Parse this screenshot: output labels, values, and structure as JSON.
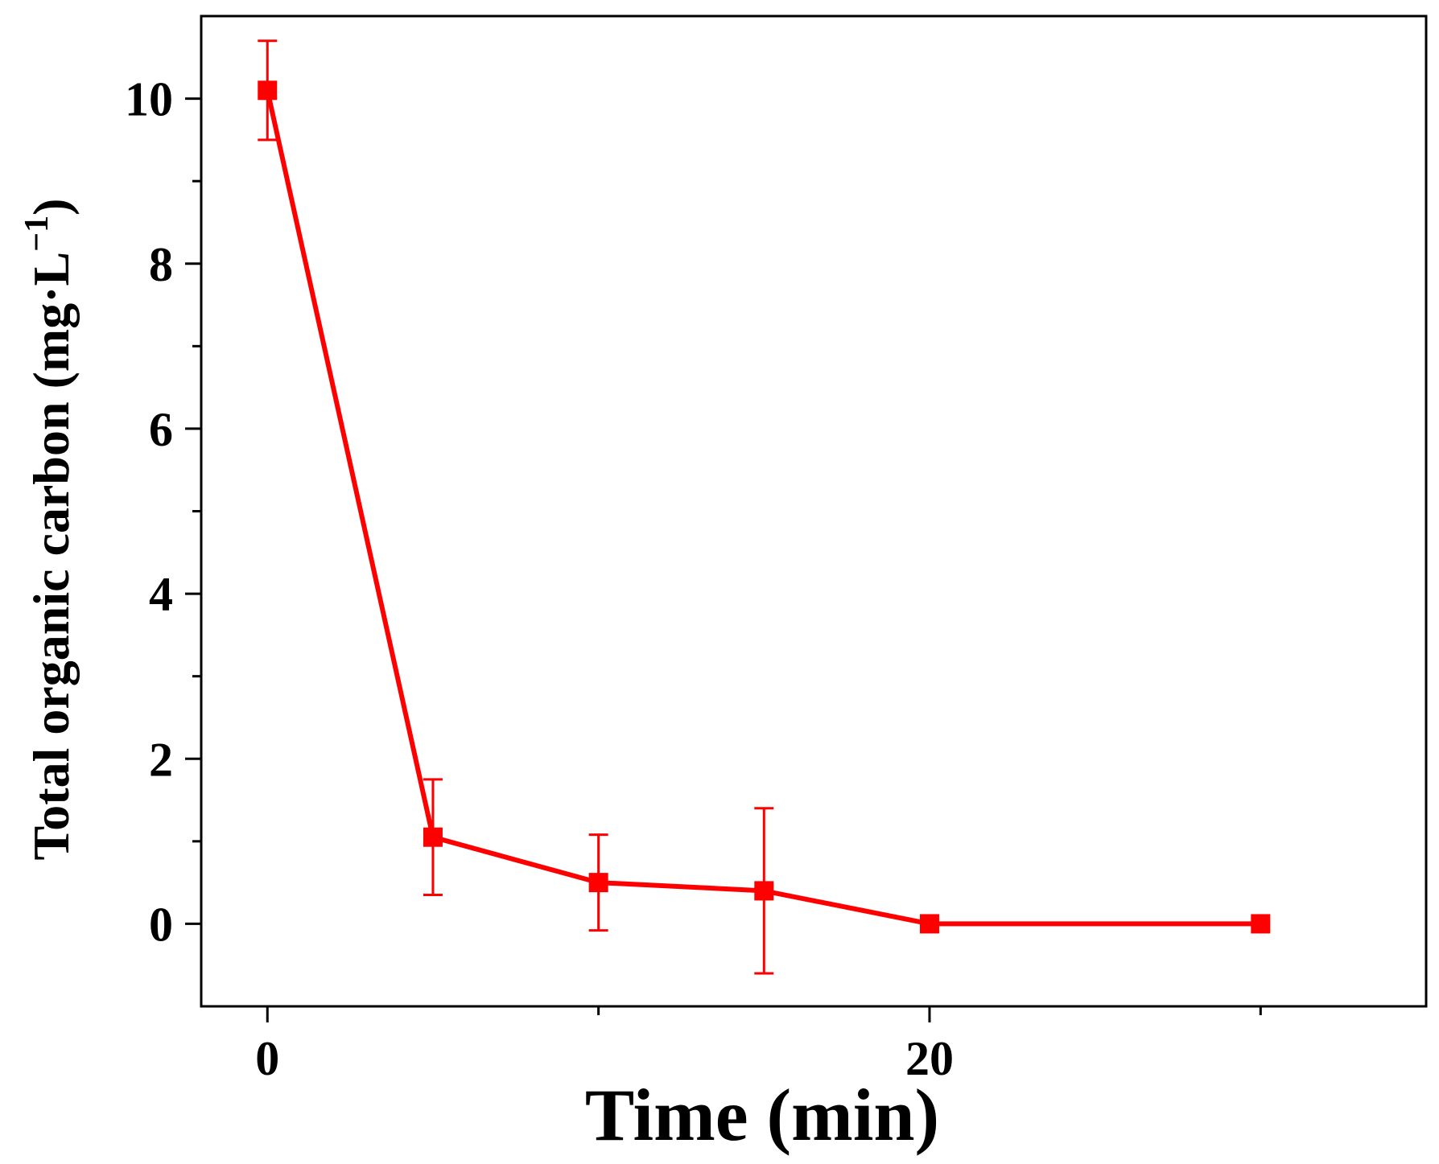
{
  "chart_data": {
    "type": "line",
    "title": "",
    "xlabel": "Time (min)",
    "ylabel": {
      "main": "Total organic carbon (mg·L",
      "superscript": "−1",
      "close": ")"
    },
    "xlim": [
      -2,
      35
    ],
    "ylim": [
      -1,
      11
    ],
    "xticks": [
      {
        "value": 0,
        "label": "0"
      },
      {
        "value": 20,
        "label": "20"
      }
    ],
    "xminor_ticks": [
      10,
      30
    ],
    "yticks": [
      {
        "value": 0,
        "label": "0"
      },
      {
        "value": 2,
        "label": "2"
      },
      {
        "value": 4,
        "label": "4"
      },
      {
        "value": 6,
        "label": "6"
      },
      {
        "value": 8,
        "label": "8"
      },
      {
        "value": 10,
        "label": "10"
      }
    ],
    "yminor_ticks": [
      1,
      3,
      5,
      7,
      9
    ],
    "grid": false,
    "legend": "none",
    "series": [
      {
        "color": "#ff0000",
        "marker": "square",
        "x": [
          0,
          5,
          10,
          15,
          20,
          30
        ],
        "y": [
          10.1,
          1.05,
          0.5,
          0.4,
          0.0,
          0.0
        ],
        "error": [
          0.6,
          0.7,
          0.58,
          1.0,
          0,
          0
        ]
      }
    ]
  }
}
